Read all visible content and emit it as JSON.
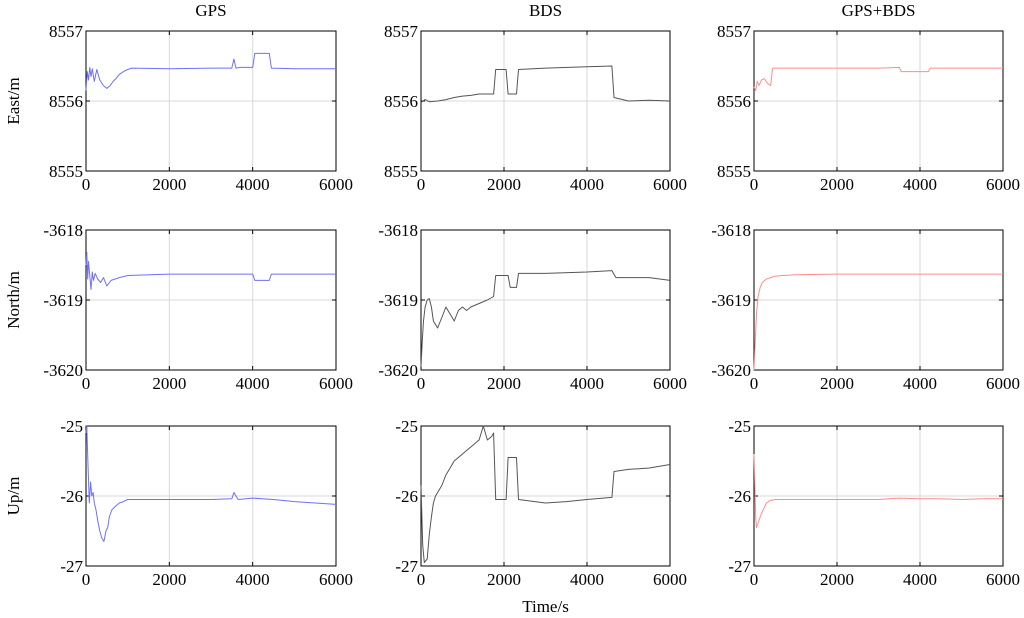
{
  "chart_data": {
    "type": "line",
    "columns": [
      "GPS",
      "BDS",
      "GPS+BDS"
    ],
    "xlabel": "Time/s",
    "xlim": [
      0,
      6000
    ],
    "xticks": [
      "0",
      "2000",
      "4000",
      "6000"
    ],
    "grid": true,
    "colors": {
      "GPS": "#6f6fff",
      "BDS": "#555555",
      "GPS+BDS": "#ff8c8c"
    },
    "rows": [
      {
        "ylabel": "East/m",
        "ylim": [
          8555,
          8557
        ],
        "yticks": [
          "8555",
          "8556",
          "8557"
        ],
        "panels": [
          {
            "column": "GPS",
            "x": [
              0,
              30,
              60,
              90,
              120,
              150,
              200,
              260,
              330,
              420,
              500,
              580,
              650,
              720,
              800,
              900,
              1000,
              1100,
              2000,
              3000,
              3500,
              3550,
              3600,
              3700,
              3800,
              4000,
              4050,
              4400,
              4450,
              5000,
              6000
            ],
            "y": [
              8556.15,
              8556.42,
              8556.3,
              8556.48,
              8556.35,
              8556.46,
              8556.28,
              8556.45,
              8556.3,
              8556.22,
              8556.18,
              8556.22,
              8556.28,
              8556.32,
              8556.38,
              8556.42,
              8556.45,
              8556.47,
              8556.46,
              8556.47,
              8556.47,
              8556.6,
              8556.47,
              8556.48,
              8556.48,
              8556.48,
              8556.68,
              8556.68,
              8556.47,
              8556.46,
              8556.46
            ]
          },
          {
            "column": "BDS",
            "x": [
              0,
              100,
              200,
              400,
              600,
              800,
              1000,
              1200,
              1400,
              1600,
              1750,
              1800,
              2050,
              2100,
              2300,
              2350,
              3000,
              4000,
              4600,
              4650,
              5000,
              5500,
              6000
            ],
            "y": [
              8555.98,
              8556.02,
              8555.99,
              8556.0,
              8556.02,
              8556.05,
              8556.07,
              8556.08,
              8556.1,
              8556.1,
              8556.1,
              8556.45,
              8556.45,
              8556.1,
              8556.1,
              8556.45,
              8556.47,
              8556.49,
              8556.5,
              8556.05,
              8556.0,
              8556.01,
              8556.0
            ]
          },
          {
            "column": "GPS+BDS",
            "x": [
              0,
              40,
              80,
              120,
              180,
              250,
              330,
              400,
              450,
              500,
              1000,
              2000,
              3000,
              3500,
              3550,
              4200,
              4250,
              5000,
              6000
            ],
            "y": [
              8556.2,
              8556.15,
              8556.28,
              8556.22,
              8556.3,
              8556.32,
              8556.25,
              8556.22,
              8556.47,
              8556.47,
              8556.47,
              8556.47,
              8556.47,
              8556.48,
              8556.42,
              8556.42,
              8556.47,
              8556.47,
              8556.47
            ]
          }
        ]
      },
      {
        "ylabel": "North/m",
        "ylim": [
          -3620,
          -3618
        ],
        "yticks": [
          "-3620",
          "-3619",
          "-3618"
        ],
        "panels": [
          {
            "column": "GPS",
            "x": [
              0,
              20,
              40,
              60,
              90,
              120,
              150,
              180,
              220,
              280,
              350,
              420,
              500,
              600,
              700,
              800,
              1000,
              2000,
              3000,
              4000,
              4050,
              4400,
              4450,
              5000,
              6000
            ],
            "y": [
              -3618.5,
              -3618.32,
              -3618.7,
              -3618.45,
              -3618.65,
              -3618.85,
              -3618.6,
              -3618.72,
              -3618.62,
              -3618.7,
              -3618.75,
              -3618.68,
              -3618.8,
              -3618.72,
              -3618.7,
              -3618.68,
              -3618.65,
              -3618.63,
              -3618.63,
              -3618.63,
              -3618.72,
              -3618.72,
              -3618.63,
              -3618.63,
              -3618.63
            ]
          },
          {
            "column": "BDS",
            "x": [
              0,
              30,
              60,
              100,
              150,
              200,
              250,
              300,
              400,
              500,
              600,
              700,
              800,
              900,
              1000,
              1100,
              1200,
              1400,
              1600,
              1750,
              1800,
              2100,
              2150,
              2300,
              2350,
              3000,
              4000,
              4600,
              4700,
              5500,
              6000
            ],
            "y": [
              -3619.95,
              -3619.6,
              -3619.3,
              -3619.1,
              -3619.0,
              -3618.98,
              -3619.1,
              -3619.3,
              -3619.4,
              -3619.25,
              -3619.1,
              -3619.2,
              -3619.3,
              -3619.15,
              -3619.1,
              -3619.15,
              -3619.1,
              -3619.05,
              -3619.0,
              -3618.95,
              -3618.65,
              -3618.65,
              -3618.82,
              -3618.82,
              -3618.62,
              -3618.62,
              -3618.6,
              -3618.58,
              -3618.68,
              -3618.68,
              -3618.72
            ]
          },
          {
            "column": "GPS+BDS",
            "x": [
              0,
              30,
              60,
              100,
              150,
              200,
              300,
              400,
              500,
              700,
              1000,
              2000,
              3000,
              4000,
              5000,
              6000
            ],
            "y": [
              -3620.0,
              -3619.6,
              -3619.2,
              -3618.95,
              -3618.82,
              -3618.75,
              -3618.7,
              -3618.68,
              -3618.66,
              -3618.65,
              -3618.64,
              -3618.63,
              -3618.63,
              -3618.63,
              -3618.63,
              -3618.63
            ]
          }
        ]
      },
      {
        "ylabel": "Up/m",
        "ylim": [
          -27,
          -25
        ],
        "yticks": [
          "-27",
          "-26",
          "-25"
        ],
        "panels": [
          {
            "column": "GPS",
            "x": [
              0,
              20,
              50,
              80,
              110,
              140,
              170,
              200,
              240,
              280,
              330,
              380,
              430,
              480,
              520,
              560,
              620,
              700,
              800,
              900,
              1000,
              1200,
              2000,
              3000,
              3500,
              3550,
              3650,
              4000,
              4500,
              5000,
              5500,
              6000
            ],
            "y": [
              -25.1,
              -25.0,
              -25.6,
              -26.1,
              -25.8,
              -26.0,
              -25.95,
              -26.1,
              -26.2,
              -26.35,
              -26.5,
              -26.6,
              -26.65,
              -26.5,
              -26.45,
              -26.3,
              -26.2,
              -26.15,
              -26.1,
              -26.08,
              -26.05,
              -26.05,
              -26.05,
              -26.05,
              -26.04,
              -25.95,
              -26.05,
              -26.03,
              -26.05,
              -26.08,
              -26.1,
              -26.12
            ]
          },
          {
            "column": "BDS",
            "x": [
              0,
              40,
              80,
              150,
              200,
              250,
              300,
              350,
              400,
              500,
              600,
              700,
              800,
              900,
              1000,
              1100,
              1200,
              1300,
              1400,
              1500,
              1600,
              1700,
              1750,
              1800,
              2050,
              2100,
              2300,
              2350,
              3000,
              3500,
              4000,
              4600,
              4650,
              5000,
              5500,
              6000
            ],
            "y": [
              -25.85,
              -26.7,
              -26.95,
              -26.9,
              -26.55,
              -26.3,
              -26.1,
              -26.0,
              -25.95,
              -25.85,
              -25.7,
              -25.6,
              -25.5,
              -25.45,
              -25.4,
              -25.35,
              -25.3,
              -25.25,
              -25.2,
              -25.0,
              -25.2,
              -25.15,
              -25.1,
              -26.05,
              -26.05,
              -25.45,
              -25.45,
              -26.05,
              -26.1,
              -26.08,
              -26.05,
              -26.02,
              -25.65,
              -25.62,
              -25.6,
              -25.55
            ]
          },
          {
            "column": "GPS+BDS",
            "x": [
              0,
              20,
              40,
              60,
              90,
              120,
              150,
              180,
              220,
              260,
              300,
              350,
              400,
              450,
              500,
              700,
              1000,
              2000,
              3000,
              3500,
              4000,
              4500,
              5000,
              5500,
              6000
            ],
            "y": [
              -25.4,
              -25.8,
              -26.3,
              -26.45,
              -26.4,
              -26.35,
              -26.3,
              -26.25,
              -26.2,
              -26.15,
              -26.1,
              -26.08,
              -26.06,
              -26.06,
              -26.05,
              -26.05,
              -26.05,
              -26.05,
              -26.05,
              -26.03,
              -26.04,
              -26.04,
              -26.05,
              -26.04,
              -26.04
            ]
          }
        ]
      }
    ]
  }
}
